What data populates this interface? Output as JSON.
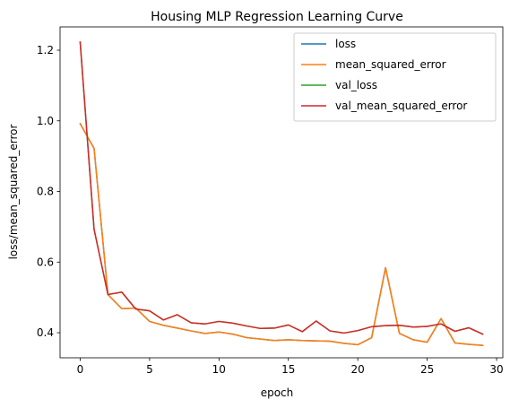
{
  "chart_data": {
    "type": "line",
    "title": "Housing MLP Regression Learning Curve",
    "xlabel": "epoch",
    "ylabel": "loss/mean_squared_error",
    "xlim": [
      -1.45,
      30.45
    ],
    "ylim": [
      0.329,
      1.266
    ],
    "x_ticks": [
      0,
      5,
      10,
      15,
      20,
      25,
      30
    ],
    "y_ticks": [
      0.4,
      0.6,
      0.8,
      1.0,
      1.2
    ],
    "y_tick_labels": [
      "0.4",
      "0.6",
      "0.8",
      "1.0",
      "1.2"
    ],
    "grid": false,
    "legend_position": "top-right",
    "x": [
      0,
      1,
      2,
      3,
      4,
      5,
      6,
      7,
      8,
      9,
      10,
      11,
      12,
      13,
      14,
      15,
      16,
      17,
      18,
      19,
      20,
      21,
      22,
      23,
      24,
      25,
      26,
      27,
      28,
      29
    ],
    "series": [
      {
        "name": "loss",
        "color": "#1f77b4",
        "values": [
          0.992,
          0.922,
          0.508,
          0.468,
          0.47,
          0.432,
          0.421,
          0.413,
          0.405,
          0.398,
          0.402,
          0.396,
          0.386,
          0.382,
          0.378,
          0.38,
          0.378,
          0.377,
          0.376,
          0.37,
          0.366,
          0.386,
          0.584,
          0.398,
          0.38,
          0.373,
          0.44,
          0.371,
          0.367,
          0.364
        ]
      },
      {
        "name": "mean_squared_error",
        "color": "#ff7f0e",
        "values": [
          0.992,
          0.922,
          0.508,
          0.468,
          0.47,
          0.432,
          0.421,
          0.413,
          0.405,
          0.398,
          0.402,
          0.396,
          0.386,
          0.382,
          0.378,
          0.38,
          0.378,
          0.377,
          0.376,
          0.37,
          0.366,
          0.386,
          0.584,
          0.398,
          0.38,
          0.373,
          0.44,
          0.371,
          0.367,
          0.364
        ]
      },
      {
        "name": "val_loss",
        "color": "#2ca02c",
        "values": [
          1.223,
          0.693,
          0.508,
          0.515,
          0.467,
          0.462,
          0.436,
          0.451,
          0.428,
          0.425,
          0.432,
          0.427,
          0.419,
          0.412,
          0.413,
          0.422,
          0.403,
          0.433,
          0.405,
          0.399,
          0.406,
          0.417,
          0.42,
          0.421,
          0.416,
          0.418,
          0.425,
          0.404,
          0.414,
          0.396
        ]
      },
      {
        "name": "val_mean_squared_error",
        "color": "#d62728",
        "values": [
          1.223,
          0.693,
          0.508,
          0.515,
          0.467,
          0.462,
          0.436,
          0.451,
          0.428,
          0.425,
          0.432,
          0.427,
          0.419,
          0.412,
          0.413,
          0.422,
          0.403,
          0.433,
          0.405,
          0.399,
          0.406,
          0.417,
          0.42,
          0.421,
          0.416,
          0.418,
          0.425,
          0.404,
          0.414,
          0.396
        ]
      }
    ]
  }
}
